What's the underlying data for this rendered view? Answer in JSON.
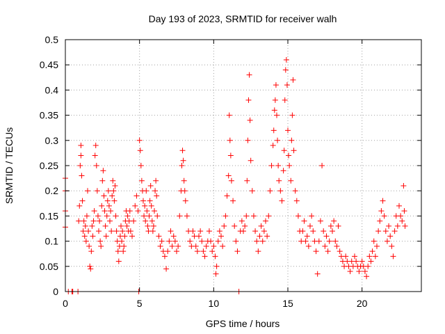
{
  "chart_data": {
    "type": "scatter",
    "title": "Day 193 of 2023, SRMTID for receiver walh",
    "xlabel": "GPS time / hours",
    "ylabel": "SRMTID / TECUs",
    "xlim": [
      0,
      24
    ],
    "ylim": [
      0,
      0.5
    ],
    "xticks": [
      0,
      5,
      10,
      15,
      20
    ],
    "xtick_labels": [
      "0",
      "5",
      "10",
      "15",
      "20"
    ],
    "yticks": [
      0,
      0.05,
      0.1,
      0.15,
      0.2,
      0.25,
      0.3,
      0.35,
      0.4,
      0.45,
      0.5
    ],
    "ytick_labels": [
      "0",
      "0.05",
      "0.1",
      "0.15",
      "0.2",
      "0.25",
      "0.3",
      "0.35",
      "0.4",
      "0.45",
      "0.5"
    ],
    "grid": true,
    "marker": "+",
    "color": "#ff0000",
    "series": [
      {
        "name": "SRMTID",
        "points": [
          [
            0.0,
            0.225
          ],
          [
            0.0,
            0.2
          ],
          [
            0.0,
            0.16
          ],
          [
            0.0,
            0.128
          ],
          [
            0.2,
            0.0
          ],
          [
            0.45,
            0.0
          ],
          [
            0.45,
            0.0
          ],
          [
            0.5,
            0.0
          ],
          [
            0.85,
            0.0
          ],
          [
            0.9,
            0.14
          ],
          [
            0.95,
            0.17
          ],
          [
            1.0,
            0.25
          ],
          [
            1.05,
            0.29
          ],
          [
            1.05,
            0.27
          ],
          [
            1.1,
            0.23
          ],
          [
            1.15,
            0.18
          ],
          [
            1.2,
            0.12
          ],
          [
            1.25,
            0.14
          ],
          [
            1.3,
            0.11
          ],
          [
            1.35,
            0.13
          ],
          [
            1.4,
            0.1
          ],
          [
            1.45,
            0.15
          ],
          [
            1.5,
            0.2
          ],
          [
            1.55,
            0.12
          ],
          [
            1.6,
            0.09
          ],
          [
            1.65,
            0.05
          ],
          [
            1.7,
            0.045
          ],
          [
            1.75,
            0.08
          ],
          [
            1.8,
            0.13
          ],
          [
            1.85,
            0.11
          ],
          [
            1.9,
            0.14
          ],
          [
            1.95,
            0.16
          ],
          [
            2.0,
            0.27
          ],
          [
            2.05,
            0.29
          ],
          [
            2.1,
            0.25
          ],
          [
            2.15,
            0.2
          ],
          [
            2.2,
            0.15
          ],
          [
            2.25,
            0.12
          ],
          [
            2.3,
            0.14
          ],
          [
            2.35,
            0.1
          ],
          [
            2.4,
            0.09
          ],
          [
            2.45,
            0.17
          ],
          [
            2.5,
            0.22
          ],
          [
            2.55,
            0.24
          ],
          [
            2.6,
            0.19
          ],
          [
            2.65,
            0.16
          ],
          [
            2.7,
            0.13
          ],
          [
            2.75,
            0.11
          ],
          [
            2.8,
            0.15
          ],
          [
            2.85,
            0.18
          ],
          [
            2.9,
            0.2
          ],
          [
            2.95,
            0.17
          ],
          [
            3.0,
            0.14
          ],
          [
            3.05,
            0.16
          ],
          [
            3.1,
            0.12
          ],
          [
            3.15,
            0.19
          ],
          [
            3.2,
            0.22
          ],
          [
            3.25,
            0.2
          ],
          [
            3.3,
            0.18
          ],
          [
            3.35,
            0.21
          ],
          [
            3.4,
            0.15
          ],
          [
            3.45,
            0.12
          ],
          [
            3.5,
            0.1
          ],
          [
            3.55,
            0.08
          ],
          [
            3.6,
            0.06
          ],
          [
            3.65,
            0.09
          ],
          [
            3.7,
            0.11
          ],
          [
            3.75,
            0.13
          ],
          [
            3.8,
            0.1
          ],
          [
            3.85,
            0.12
          ],
          [
            3.9,
            0.08
          ],
          [
            3.95,
            0.09
          ],
          [
            4.0,
            0.11
          ],
          [
            4.05,
            0.14
          ],
          [
            4.1,
            0.16
          ],
          [
            4.15,
            0.13
          ],
          [
            4.2,
            0.15
          ],
          [
            4.25,
            0.12
          ],
          [
            4.3,
            0.14
          ],
          [
            4.35,
            0.16
          ],
          [
            4.4,
            0.12
          ],
          [
            4.5,
            0.11
          ],
          [
            4.6,
            0.14
          ],
          [
            4.7,
            0.17
          ],
          [
            4.8,
            0.19
          ],
          [
            4.9,
            0.16
          ],
          [
            4.95,
            0.0
          ],
          [
            5.0,
            0.3
          ],
          [
            5.05,
            0.28
          ],
          [
            5.1,
            0.25
          ],
          [
            5.15,
            0.22
          ],
          [
            5.2,
            0.2
          ],
          [
            5.25,
            0.18
          ],
          [
            5.3,
            0.15
          ],
          [
            5.35,
            0.17
          ],
          [
            5.4,
            0.14
          ],
          [
            5.45,
            0.2
          ],
          [
            5.5,
            0.16
          ],
          [
            5.55,
            0.13
          ],
          [
            5.6,
            0.12
          ],
          [
            5.65,
            0.15
          ],
          [
            5.7,
            0.18
          ],
          [
            5.75,
            0.21
          ],
          [
            5.8,
            0.17
          ],
          [
            5.85,
            0.14
          ],
          [
            5.9,
            0.12
          ],
          [
            5.95,
            0.13
          ],
          [
            6.0,
            0.16
          ],
          [
            6.05,
            0.2
          ],
          [
            6.1,
            0.22
          ],
          [
            6.15,
            0.19
          ],
          [
            6.2,
            0.15
          ],
          [
            6.3,
            0.11
          ],
          [
            6.4,
            0.09
          ],
          [
            6.5,
            0.1
          ],
          [
            6.6,
            0.08
          ],
          [
            6.7,
            0.07
          ],
          [
            6.8,
            0.045
          ],
          [
            6.9,
            0.08
          ],
          [
            7.0,
            0.1
          ],
          [
            7.1,
            0.12
          ],
          [
            7.2,
            0.09
          ],
          [
            7.3,
            0.11
          ],
          [
            7.4,
            0.1
          ],
          [
            7.5,
            0.08
          ],
          [
            7.6,
            0.09
          ],
          [
            7.7,
            0.15
          ],
          [
            7.8,
            0.2
          ],
          [
            7.85,
            0.25
          ],
          [
            7.9,
            0.28
          ],
          [
            7.95,
            0.26
          ],
          [
            8.0,
            0.22
          ],
          [
            8.05,
            0.2
          ],
          [
            8.1,
            0.18
          ],
          [
            8.2,
            0.15
          ],
          [
            8.3,
            0.12
          ],
          [
            8.4,
            0.1
          ],
          [
            8.5,
            0.09
          ],
          [
            8.6,
            0.12
          ],
          [
            8.7,
            0.11
          ],
          [
            8.8,
            0.09
          ],
          [
            8.9,
            0.08
          ],
          [
            9.0,
            0.11
          ],
          [
            9.1,
            0.12
          ],
          [
            9.2,
            0.1
          ],
          [
            9.3,
            0.08
          ],
          [
            9.4,
            0.07
          ],
          [
            9.5,
            0.09
          ],
          [
            9.6,
            0.1
          ],
          [
            9.7,
            0.12
          ],
          [
            9.8,
            0.1
          ],
          [
            9.9,
            0.08
          ],
          [
            10.0,
            0.09
          ],
          [
            10.1,
            0.07
          ],
          [
            10.15,
            0.035
          ],
          [
            10.2,
            0.05
          ],
          [
            10.3,
            0.1
          ],
          [
            10.4,
            0.12
          ],
          [
            10.5,
            0.11
          ],
          [
            10.6,
            0.09
          ],
          [
            10.7,
            0.13
          ],
          [
            10.8,
            0.15
          ],
          [
            10.9,
            0.19
          ],
          [
            11.0,
            0.23
          ],
          [
            11.05,
            0.35
          ],
          [
            11.1,
            0.3
          ],
          [
            11.15,
            0.27
          ],
          [
            11.2,
            0.22
          ],
          [
            11.3,
            0.18
          ],
          [
            11.4,
            0.13
          ],
          [
            11.5,
            0.1
          ],
          [
            11.6,
            0.08
          ],
          [
            11.7,
            0.0
          ],
          [
            11.8,
            0.12
          ],
          [
            11.9,
            0.14
          ],
          [
            12.0,
            0.12
          ],
          [
            12.1,
            0.13
          ],
          [
            12.2,
            0.15
          ],
          [
            12.25,
            0.22
          ],
          [
            12.3,
            0.3
          ],
          [
            12.35,
            0.38
          ],
          [
            12.4,
            0.43
          ],
          [
            12.45,
            0.34
          ],
          [
            12.5,
            0.26
          ],
          [
            12.6,
            0.2
          ],
          [
            12.7,
            0.15
          ],
          [
            12.8,
            0.12
          ],
          [
            12.9,
            0.1
          ],
          [
            13.0,
            0.08
          ],
          [
            13.1,
            0.11
          ],
          [
            13.2,
            0.13
          ],
          [
            13.3,
            0.1
          ],
          [
            13.4,
            0.12
          ],
          [
            13.5,
            0.14
          ],
          [
            13.6,
            0.11
          ],
          [
            13.7,
            0.15
          ],
          [
            13.8,
            0.2
          ],
          [
            13.9,
            0.25
          ],
          [
            14.0,
            0.29
          ],
          [
            14.05,
            0.32
          ],
          [
            14.1,
            0.36
          ],
          [
            14.15,
            0.38
          ],
          [
            14.2,
            0.41
          ],
          [
            14.25,
            0.35
          ],
          [
            14.3,
            0.3
          ],
          [
            14.35,
            0.25
          ],
          [
            14.4,
            0.22
          ],
          [
            14.5,
            0.2
          ],
          [
            14.6,
            0.18
          ],
          [
            14.7,
            0.24
          ],
          [
            14.75,
            0.28
          ],
          [
            14.8,
            0.38
          ],
          [
            14.85,
            0.44
          ],
          [
            14.9,
            0.46
          ],
          [
            14.95,
            0.41
          ],
          [
            15.0,
            0.32
          ],
          [
            15.05,
            0.27
          ],
          [
            15.1,
            0.25
          ],
          [
            15.2,
            0.22
          ],
          [
            15.25,
            0.3
          ],
          [
            15.3,
            0.35
          ],
          [
            15.35,
            0.42
          ],
          [
            15.4,
            0.28
          ],
          [
            15.5,
            0.2
          ],
          [
            15.6,
            0.18
          ],
          [
            15.7,
            0.15
          ],
          [
            15.8,
            0.12
          ],
          [
            15.9,
            0.1
          ],
          [
            16.0,
            0.12
          ],
          [
            16.1,
            0.14
          ],
          [
            16.2,
            0.1
          ],
          [
            16.3,
            0.11
          ],
          [
            16.4,
            0.09
          ],
          [
            16.5,
            0.13
          ],
          [
            16.6,
            0.15
          ],
          [
            16.7,
            0.12
          ],
          [
            16.8,
            0.1
          ],
          [
            16.9,
            0.08
          ],
          [
            17.0,
            0.035
          ],
          [
            17.1,
            0.1
          ],
          [
            17.2,
            0.14
          ],
          [
            17.3,
            0.25
          ],
          [
            17.4,
            0.12
          ],
          [
            17.5,
            0.09
          ],
          [
            17.6,
            0.11
          ],
          [
            17.7,
            0.08
          ],
          [
            17.8,
            0.1
          ],
          [
            17.9,
            0.13
          ],
          [
            18.0,
            0.12
          ],
          [
            18.1,
            0.14
          ],
          [
            18.2,
            0.1
          ],
          [
            18.3,
            0.09
          ],
          [
            18.4,
            0.13
          ],
          [
            18.5,
            0.08
          ],
          [
            18.6,
            0.07
          ],
          [
            18.7,
            0.06
          ],
          [
            18.8,
            0.05
          ],
          [
            18.9,
            0.07
          ],
          [
            19.0,
            0.06
          ],
          [
            19.1,
            0.05
          ],
          [
            19.2,
            0.04
          ],
          [
            19.3,
            0.06
          ],
          [
            19.4,
            0.05
          ],
          [
            19.5,
            0.07
          ],
          [
            19.6,
            0.06
          ],
          [
            19.7,
            0.05
          ],
          [
            19.8,
            0.04
          ],
          [
            19.9,
            0.05
          ],
          [
            20.0,
            0.06
          ],
          [
            20.1,
            0.05
          ],
          [
            20.2,
            0.04
          ],
          [
            20.3,
            0.03
          ],
          [
            20.4,
            0.05
          ],
          [
            20.5,
            0.07
          ],
          [
            20.6,
            0.06
          ],
          [
            20.7,
            0.08
          ],
          [
            20.8,
            0.1
          ],
          [
            20.9,
            0.07
          ],
          [
            21.0,
            0.09
          ],
          [
            21.1,
            0.12
          ],
          [
            21.2,
            0.14
          ],
          [
            21.3,
            0.16
          ],
          [
            21.4,
            0.18
          ],
          [
            21.5,
            0.15
          ],
          [
            21.6,
            0.12
          ],
          [
            21.7,
            0.1
          ],
          [
            21.8,
            0.13
          ],
          [
            21.9,
            0.11
          ],
          [
            22.0,
            0.09
          ],
          [
            22.1,
            0.07
          ],
          [
            22.2,
            0.12
          ],
          [
            22.3,
            0.15
          ],
          [
            22.4,
            0.13
          ],
          [
            22.5,
            0.17
          ],
          [
            22.6,
            0.15
          ],
          [
            22.7,
            0.14
          ],
          [
            22.8,
            0.21
          ],
          [
            22.85,
            0.16
          ],
          [
            22.9,
            0.13
          ]
        ]
      }
    ]
  }
}
